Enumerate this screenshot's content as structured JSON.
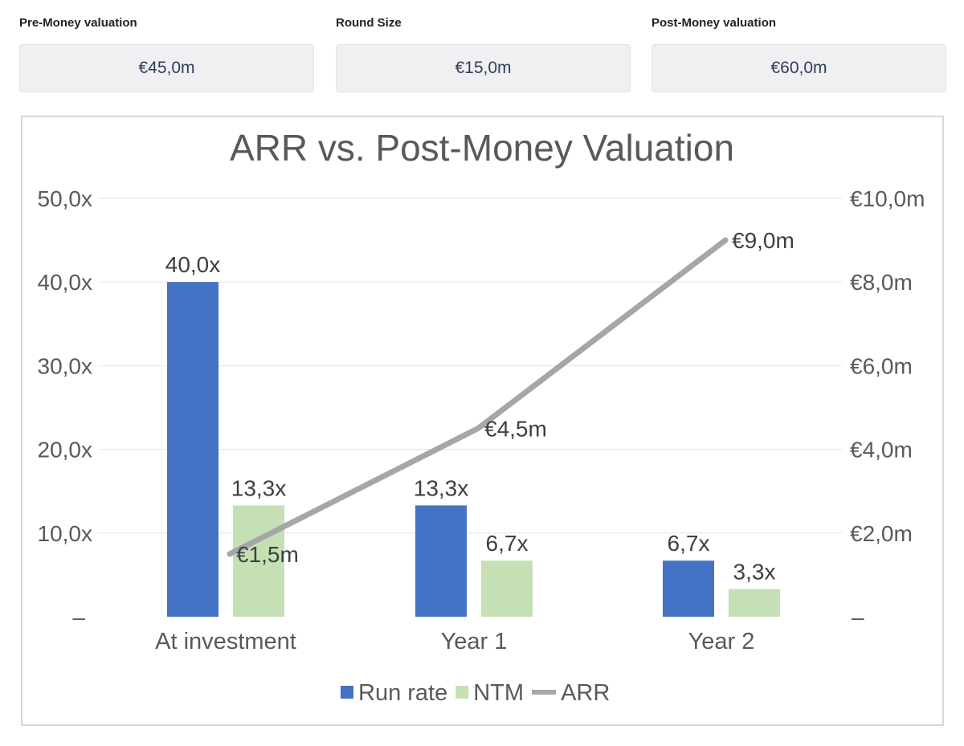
{
  "metrics": [
    {
      "label": "Pre-Money valuation",
      "value": "€45,0m"
    },
    {
      "label": "Round Size",
      "value": "€15,0m"
    },
    {
      "label": "Post-Money valuation",
      "value": "€60,0m"
    }
  ],
  "colors": {
    "run_rate": "#4472c4",
    "ntm": "#c5e0b4",
    "arr": "#a6a6a6",
    "grid": "#e6e6e6",
    "text": "#595959"
  },
  "chart_data": {
    "type": "bar",
    "title": "ARR vs. Post-Money Valuation",
    "categories": [
      "At investment",
      "Year 1",
      "Year 2"
    ],
    "series": [
      {
        "name": "Run rate",
        "kind": "bar",
        "axis": "left",
        "values": [
          40.0,
          13.3,
          6.7
        ],
        "labels": [
          "40,0x",
          "13,3x",
          "6,7x"
        ]
      },
      {
        "name": "NTM",
        "kind": "bar",
        "axis": "left",
        "values": [
          13.3,
          6.7,
          3.3
        ],
        "labels": [
          "13,3x",
          "6,7x",
          "3,3x"
        ]
      },
      {
        "name": "ARR",
        "kind": "line",
        "axis": "right",
        "values": [
          1.5,
          4.5,
          9.0
        ],
        "labels": [
          "€1,5m",
          "€4,5m",
          "€9,0m"
        ]
      }
    ],
    "y_left": {
      "min": 0,
      "max": 50,
      "ticks": [
        "–",
        "10,0x",
        "20,0x",
        "30,0x",
        "40,0x",
        "50,0x"
      ]
    },
    "y_right": {
      "min": 0,
      "max": 10,
      "ticks": [
        "–",
        "€2,0m",
        "€4,0m",
        "€6,0m",
        "€8,0m",
        "€10,0m"
      ]
    },
    "grid": true,
    "legend": "bottom"
  }
}
